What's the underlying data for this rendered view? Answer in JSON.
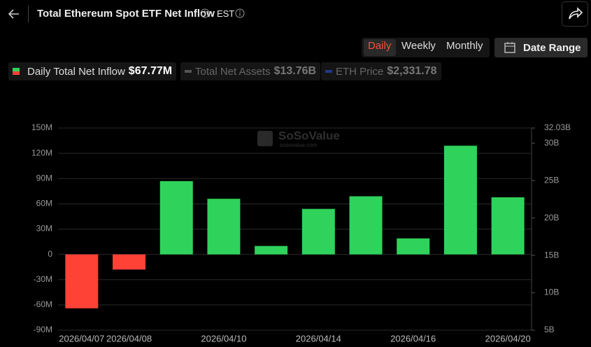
{
  "header": {
    "title": "Total Ethereum Spot ETF Net Inflow",
    "timezone": "EST"
  },
  "controls": {
    "tabs": [
      "Daily",
      "Weekly",
      "Monthly"
    ],
    "active_tab": 0,
    "date_range": "Date Range"
  },
  "watermark": {
    "brand": "SoSoValue",
    "site": "sosovalue.com"
  },
  "chart_data": {
    "type": "bar",
    "categories": [
      "2026/04/07",
      "2026/04/08",
      null,
      "2026/04/10",
      null,
      "2026/04/14",
      null,
      "2026/04/16",
      null,
      "2026/04/20"
    ],
    "series": [
      {
        "name": "Daily Total Net Inflow",
        "color": "#2fd25b",
        "negative_color": "#ff4136",
        "legend_value": "$67.77M",
        "values": [
          -64,
          -18,
          87,
          66,
          10,
          54,
          69,
          19,
          129,
          67.77
        ]
      }
    ],
    "inactive_series": [
      {
        "name": "Total Net Assets",
        "color": "#555555",
        "legend_value": "$13.76B"
      },
      {
        "name": "ETH Price",
        "color": "#1f3a8a",
        "legend_value": "$2,331.78"
      }
    ],
    "ylim": [
      -90,
      150
    ],
    "yticks": [
      {
        "value": -90,
        "label": "-90M"
      },
      {
        "value": -60,
        "label": "-60M"
      },
      {
        "value": -30,
        "label": "-30M"
      },
      0,
      {
        "value": 30,
        "label": "30M"
      },
      {
        "value": 60,
        "label": "60M"
      },
      {
        "value": 90,
        "label": "90M"
      },
      {
        "value": 120,
        "label": "120M"
      },
      {
        "value": 150,
        "label": "150M"
      }
    ],
    "y2lim": [
      5,
      32.03
    ],
    "y2ticks": [
      {
        "value": 5,
        "label": "5B"
      },
      {
        "value": 10,
        "label": "10B"
      },
      {
        "value": 15,
        "label": "15B"
      },
      {
        "value": 20,
        "label": "20B"
      },
      {
        "value": 25,
        "label": "25B"
      },
      {
        "value": 30,
        "label": "30B"
      },
      {
        "value": 32.03,
        "label": "32.03B"
      }
    ],
    "grid": true
  }
}
